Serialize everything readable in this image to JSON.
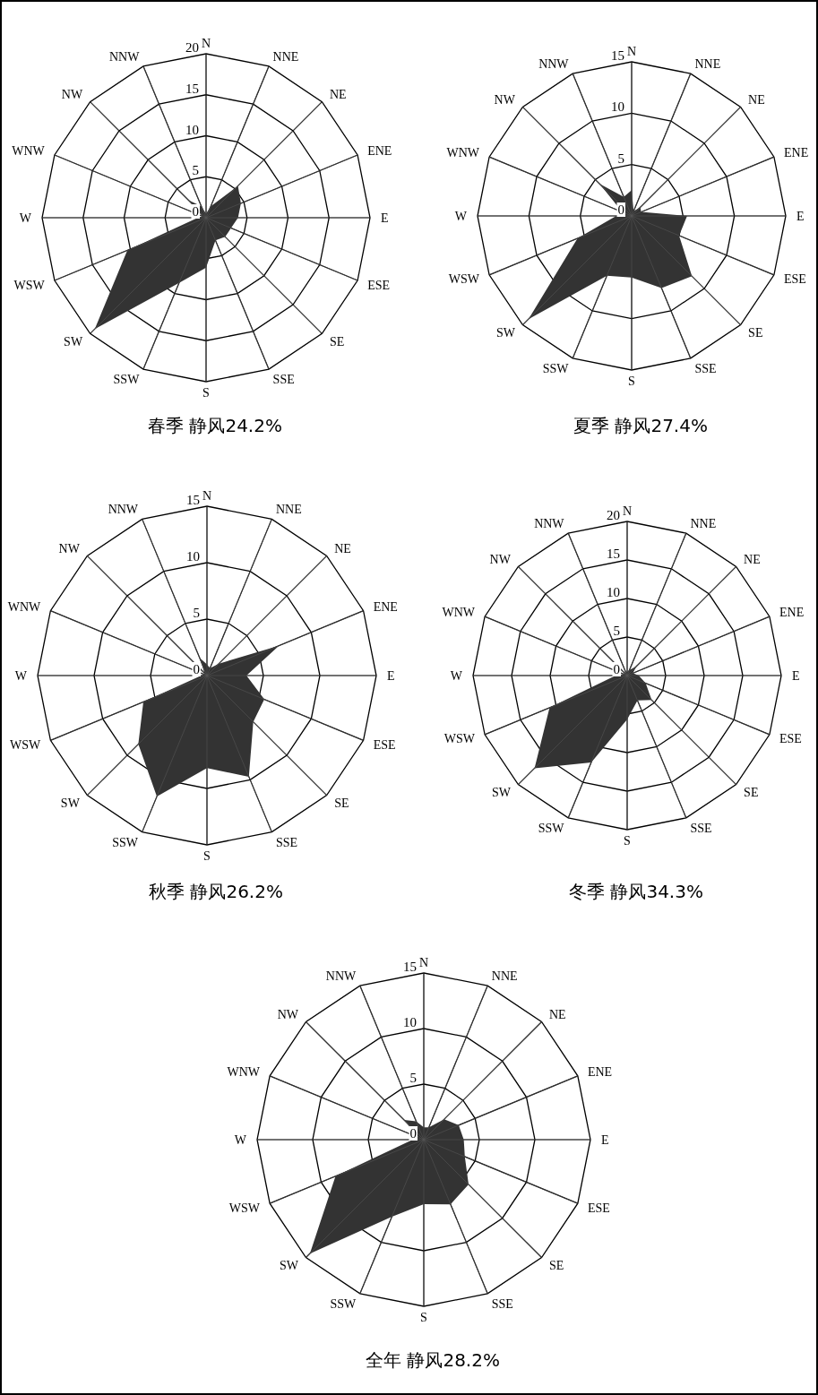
{
  "chart_data": [
    {
      "type": "radar",
      "title": "春季 静风24.2%",
      "categories": [
        "N",
        "NNE",
        "NE",
        "ENE",
        "E",
        "ESE",
        "SE",
        "SSE",
        "S",
        "SSW",
        "SW",
        "WSW",
        "W",
        "WNW",
        "NW",
        "NNW"
      ],
      "ylim": [
        0,
        20
      ],
      "yticks": [
        0,
        5,
        10,
        15,
        20
      ],
      "grid": true,
      "series": [
        {
          "color": "#333333",
          "values": [
            0.5,
            1.5,
            5.5,
            4.6,
            3.9,
            3.3,
            3.3,
            3.0,
            6.1,
            8.6,
            19.2,
            10.4,
            1.0,
            0.5,
            3.0,
            1.5
          ]
        }
      ]
    },
    {
      "type": "radar",
      "title": "夏季 静风27.4%",
      "categories": [
        "N",
        "NNE",
        "NE",
        "ENE",
        "E",
        "ESE",
        "SE",
        "SSE",
        "S",
        "SSW",
        "SW",
        "WSW",
        "W",
        "WNW",
        "NW",
        "NNW"
      ],
      "ylim": [
        0,
        15
      ],
      "yticks": [
        0,
        5,
        10,
        15
      ],
      "grid": true,
      "series": [
        {
          "color": "#333333",
          "values": [
            2.5,
            0.5,
            1.2,
            1.0,
            5.4,
            5.0,
            8.3,
            7.6,
            6.0,
            6.3,
            14.2,
            5.7,
            1.5,
            1.0,
            4.4,
            2.0
          ]
        }
      ]
    },
    {
      "type": "radar",
      "title": "秋季 静风26.2%",
      "categories": [
        "N",
        "NNE",
        "NE",
        "ENE",
        "E",
        "ESE",
        "SE",
        "SSE",
        "S",
        "SSW",
        "SW",
        "WSW",
        "W",
        "WNW",
        "NW",
        "NNW"
      ],
      "ylim": [
        0,
        15
      ],
      "yticks": [
        0,
        5,
        10,
        15
      ],
      "grid": true,
      "series": [
        {
          "color": "#333333",
          "values": [
            1.0,
            0.7,
            1.5,
            6.9,
            3.5,
            5.5,
            5.8,
            9.7,
            8.2,
            11.6,
            8.6,
            6.1,
            0.5,
            0.3,
            0.3,
            1.7
          ]
        }
      ]
    },
    {
      "type": "radar",
      "title": "冬季 静风34.3%",
      "categories": [
        "N",
        "NNE",
        "NE",
        "ENE",
        "E",
        "ESE",
        "SE",
        "SSE",
        "S",
        "SSW",
        "SW",
        "WSW",
        "W",
        "WNW",
        "NW",
        "NNW"
      ],
      "ylim": [
        0,
        20
      ],
      "yticks": [
        0,
        5,
        10,
        15,
        20
      ],
      "grid": true,
      "series": [
        {
          "color": "#333333",
          "values": [
            0.5,
            0.8,
            1.7,
            0.8,
            1.5,
            2.6,
            4.5,
            3.5,
            5.7,
            12.2,
            17.0,
            10.9,
            1.5,
            0.5,
            0.5,
            0.5
          ]
        }
      ]
    },
    {
      "type": "radar",
      "title": "全年 静风28.2%",
      "categories": [
        "N",
        "NNE",
        "NE",
        "ENE",
        "E",
        "ESE",
        "SE",
        "SSE",
        "S",
        "SSW",
        "SW",
        "WSW",
        "W",
        "WNW",
        "NW",
        "NNW"
      ],
      "ylim": [
        0,
        15
      ],
      "yticks": [
        0,
        5,
        10,
        15
      ],
      "grid": true,
      "series": [
        {
          "color": "#333333",
          "values": [
            1.1,
            1.2,
            2.6,
            3.4,
            3.6,
            4.0,
            5.7,
            6.3,
            5.8,
            7.5,
            14.5,
            8.6,
            1.0,
            0.5,
            2.5,
            1.8
          ]
        }
      ]
    }
  ]
}
